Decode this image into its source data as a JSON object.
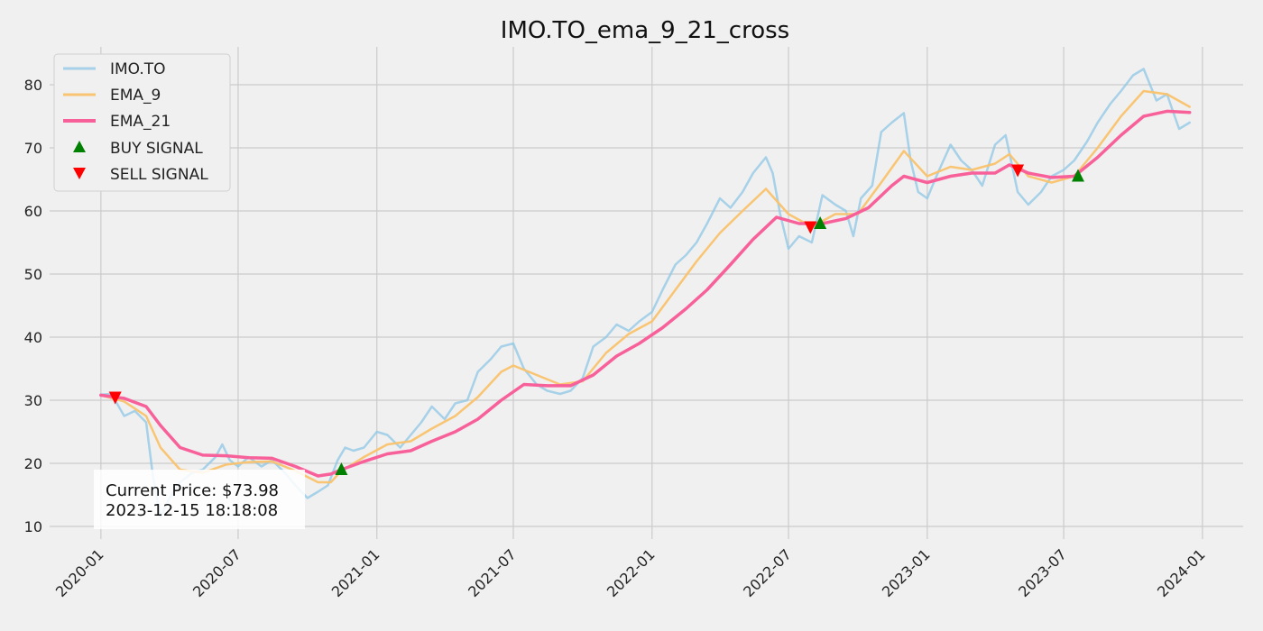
{
  "chart_data": {
    "type": "line",
    "title": "IMO.TO_ema_9_21_cross",
    "xlabel": "",
    "ylabel": "",
    "x_range": [
      "2019-10-25",
      "2024-02-24"
    ],
    "ylim": [
      8.0,
      86.0
    ],
    "grid": true,
    "legend_position": "top-left",
    "x_ticks": [
      {
        "date": "2020-01-01",
        "label": "2020-01"
      },
      {
        "date": "2020-07-01",
        "label": "2020-07"
      },
      {
        "date": "2021-01-01",
        "label": "2021-01"
      },
      {
        "date": "2021-07-01",
        "label": "2021-07"
      },
      {
        "date": "2022-01-01",
        "label": "2022-01"
      },
      {
        "date": "2022-07-01",
        "label": "2022-07"
      },
      {
        "date": "2023-01-01",
        "label": "2023-01"
      },
      {
        "date": "2023-07-01",
        "label": "2023-07"
      },
      {
        "date": "2024-01-01",
        "label": "2024-01"
      }
    ],
    "y_ticks": [
      10,
      20,
      30,
      40,
      50,
      60,
      70,
      80
    ],
    "series": [
      {
        "name": "IMO.TO",
        "color": "#8ec7e6",
        "style": "line",
        "points": [
          [
            "2020-01-01",
            30.9
          ],
          [
            "2020-01-15",
            31.0
          ],
          [
            "2020-02-01",
            27.5
          ],
          [
            "2020-02-15",
            28.3
          ],
          [
            "2020-03-01",
            26.5
          ],
          [
            "2020-03-10",
            18.0
          ],
          [
            "2020-03-20",
            11.5
          ],
          [
            "2020-04-01",
            14.5
          ],
          [
            "2020-04-15",
            17.0
          ],
          [
            "2020-05-01",
            18.5
          ],
          [
            "2020-05-15",
            19.0
          ],
          [
            "2020-06-01",
            21.0
          ],
          [
            "2020-06-10",
            23.0
          ],
          [
            "2020-06-20",
            20.5
          ],
          [
            "2020-07-01",
            19.5
          ],
          [
            "2020-07-15",
            21.0
          ],
          [
            "2020-08-01",
            19.5
          ],
          [
            "2020-08-15",
            20.5
          ],
          [
            "2020-09-01",
            18.5
          ],
          [
            "2020-09-15",
            16.5
          ],
          [
            "2020-10-01",
            14.5
          ],
          [
            "2020-10-15",
            15.5
          ],
          [
            "2020-10-28",
            16.5
          ],
          [
            "2020-11-10",
            20.5
          ],
          [
            "2020-11-20",
            22.5
          ],
          [
            "2020-12-01",
            22.0
          ],
          [
            "2020-12-15",
            22.5
          ],
          [
            "2021-01-01",
            25.0
          ],
          [
            "2021-01-15",
            24.5
          ],
          [
            "2021-02-01",
            22.5
          ],
          [
            "2021-02-15",
            24.5
          ],
          [
            "2021-03-01",
            26.5
          ],
          [
            "2021-03-15",
            29.0
          ],
          [
            "2021-04-01",
            27.0
          ],
          [
            "2021-04-15",
            29.5
          ],
          [
            "2021-05-01",
            30.0
          ],
          [
            "2021-05-15",
            34.5
          ],
          [
            "2021-06-01",
            36.5
          ],
          [
            "2021-06-15",
            38.5
          ],
          [
            "2021-07-01",
            39.0
          ],
          [
            "2021-07-15",
            35.0
          ],
          [
            "2021-08-01",
            32.5
          ],
          [
            "2021-08-15",
            31.5
          ],
          [
            "2021-09-01",
            31.0
          ],
          [
            "2021-09-15",
            31.5
          ],
          [
            "2021-10-01",
            33.5
          ],
          [
            "2021-10-15",
            38.5
          ],
          [
            "2021-11-01",
            40.0
          ],
          [
            "2021-11-15",
            42.0
          ],
          [
            "2021-12-01",
            41.0
          ],
          [
            "2021-12-15",
            42.5
          ],
          [
            "2022-01-01",
            44.0
          ],
          [
            "2022-01-15",
            47.5
          ],
          [
            "2022-02-01",
            51.5
          ],
          [
            "2022-02-15",
            53.0
          ],
          [
            "2022-03-01",
            55.0
          ],
          [
            "2022-03-15",
            58.0
          ],
          [
            "2022-04-01",
            62.0
          ],
          [
            "2022-04-15",
            60.5
          ],
          [
            "2022-05-01",
            63.0
          ],
          [
            "2022-05-15",
            66.0
          ],
          [
            "2022-06-01",
            68.5
          ],
          [
            "2022-06-10",
            66.0
          ],
          [
            "2022-06-20",
            59.5
          ],
          [
            "2022-07-01",
            54.0
          ],
          [
            "2022-07-15",
            56.0
          ],
          [
            "2022-08-01",
            55.0
          ],
          [
            "2022-08-15",
            62.5
          ],
          [
            "2022-09-01",
            61.0
          ],
          [
            "2022-09-15",
            60.0
          ],
          [
            "2022-09-25",
            56.0
          ],
          [
            "2022-10-05",
            62.0
          ],
          [
            "2022-10-20",
            64.0
          ],
          [
            "2022-11-01",
            72.5
          ],
          [
            "2022-11-15",
            74.0
          ],
          [
            "2022-12-01",
            75.5
          ],
          [
            "2022-12-10",
            68.0
          ],
          [
            "2022-12-20",
            63.0
          ],
          [
            "2023-01-01",
            62.0
          ],
          [
            "2023-01-15",
            66.0
          ],
          [
            "2023-02-01",
            70.5
          ],
          [
            "2023-02-15",
            68.0
          ],
          [
            "2023-03-01",
            66.5
          ],
          [
            "2023-03-15",
            64.0
          ],
          [
            "2023-04-01",
            70.5
          ],
          [
            "2023-04-15",
            72.0
          ],
          [
            "2023-05-01",
            63.0
          ],
          [
            "2023-05-15",
            61.0
          ],
          [
            "2023-06-01",
            63.0
          ],
          [
            "2023-06-15",
            65.5
          ],
          [
            "2023-07-01",
            66.5
          ],
          [
            "2023-07-15",
            68.0
          ],
          [
            "2023-08-01",
            71.0
          ],
          [
            "2023-08-15",
            74.0
          ],
          [
            "2023-09-01",
            77.0
          ],
          [
            "2023-09-15",
            79.0
          ],
          [
            "2023-10-01",
            81.5
          ],
          [
            "2023-10-15",
            82.5
          ],
          [
            "2023-11-01",
            77.5
          ],
          [
            "2023-11-15",
            78.5
          ],
          [
            "2023-12-01",
            73.0
          ],
          [
            "2023-12-15",
            74.0
          ]
        ]
      },
      {
        "name": "EMA_9",
        "color": "#f9c26c",
        "style": "line",
        "points": [
          [
            "2020-01-01",
            30.8
          ],
          [
            "2020-02-01",
            29.8
          ],
          [
            "2020-03-01",
            27.5
          ],
          [
            "2020-03-20",
            22.5
          ],
          [
            "2020-04-15",
            19.0
          ],
          [
            "2020-05-15",
            18.5
          ],
          [
            "2020-06-15",
            19.8
          ],
          [
            "2020-07-15",
            20.2
          ],
          [
            "2020-08-15",
            20.3
          ],
          [
            "2020-09-15",
            18.8
          ],
          [
            "2020-10-15",
            17.0
          ],
          [
            "2020-11-01",
            17.0
          ],
          [
            "2020-11-15",
            18.8
          ],
          [
            "2020-12-15",
            21.0
          ],
          [
            "2021-01-15",
            23.0
          ],
          [
            "2021-02-15",
            23.5
          ],
          [
            "2021-03-15",
            25.5
          ],
          [
            "2021-04-15",
            27.5
          ],
          [
            "2021-05-15",
            30.5
          ],
          [
            "2021-06-15",
            34.5
          ],
          [
            "2021-07-01",
            35.5
          ],
          [
            "2021-08-01",
            34.0
          ],
          [
            "2021-09-01",
            32.5
          ],
          [
            "2021-10-01",
            33.0
          ],
          [
            "2021-11-01",
            37.5
          ],
          [
            "2021-12-01",
            40.5
          ],
          [
            "2022-01-01",
            42.5
          ],
          [
            "2022-02-01",
            47.5
          ],
          [
            "2022-03-01",
            52.0
          ],
          [
            "2022-04-01",
            56.5
          ],
          [
            "2022-05-01",
            60.0
          ],
          [
            "2022-06-01",
            63.5
          ],
          [
            "2022-07-01",
            59.5
          ],
          [
            "2022-08-01",
            57.5
          ],
          [
            "2022-09-01",
            59.5
          ],
          [
            "2022-10-01",
            59.5
          ],
          [
            "2022-11-01",
            64.5
          ],
          [
            "2022-12-01",
            69.5
          ],
          [
            "2023-01-01",
            65.5
          ],
          [
            "2023-02-01",
            67.0
          ],
          [
            "2023-03-01",
            66.5
          ],
          [
            "2023-04-01",
            67.5
          ],
          [
            "2023-04-20",
            69.0
          ],
          [
            "2023-05-15",
            65.5
          ],
          [
            "2023-06-15",
            64.5
          ],
          [
            "2023-07-15",
            65.5
          ],
          [
            "2023-08-15",
            70.0
          ],
          [
            "2023-09-15",
            75.0
          ],
          [
            "2023-10-15",
            79.0
          ],
          [
            "2023-11-15",
            78.5
          ],
          [
            "2023-12-15",
            76.5
          ]
        ]
      },
      {
        "name": "EMA_21",
        "color": "#f8609a",
        "style": "thick",
        "points": [
          [
            "2020-01-01",
            30.8
          ],
          [
            "2020-02-01",
            30.3
          ],
          [
            "2020-03-01",
            29.0
          ],
          [
            "2020-03-20",
            26.0
          ],
          [
            "2020-04-15",
            22.5
          ],
          [
            "2020-05-15",
            21.3
          ],
          [
            "2020-06-15",
            21.2
          ],
          [
            "2020-07-15",
            20.9
          ],
          [
            "2020-08-15",
            20.8
          ],
          [
            "2020-09-15",
            19.5
          ],
          [
            "2020-10-15",
            18.0
          ],
          [
            "2020-11-01",
            18.3
          ],
          [
            "2020-11-15",
            19.0
          ],
          [
            "2020-12-15",
            20.3
          ],
          [
            "2021-01-15",
            21.5
          ],
          [
            "2021-02-15",
            22.0
          ],
          [
            "2021-03-15",
            23.5
          ],
          [
            "2021-04-15",
            25.0
          ],
          [
            "2021-05-15",
            27.0
          ],
          [
            "2021-06-15",
            30.0
          ],
          [
            "2021-07-15",
            32.5
          ],
          [
            "2021-08-15",
            32.3
          ],
          [
            "2021-09-15",
            32.3
          ],
          [
            "2021-10-15",
            34.0
          ],
          [
            "2021-11-15",
            37.0
          ],
          [
            "2021-12-15",
            39.0
          ],
          [
            "2022-01-15",
            41.5
          ],
          [
            "2022-02-15",
            44.5
          ],
          [
            "2022-03-15",
            47.5
          ],
          [
            "2022-04-15",
            51.5
          ],
          [
            "2022-05-15",
            55.5
          ],
          [
            "2022-06-15",
            59.0
          ],
          [
            "2022-07-15",
            58.0
          ],
          [
            "2022-08-15",
            58.0
          ],
          [
            "2022-09-15",
            58.8
          ],
          [
            "2022-10-15",
            60.5
          ],
          [
            "2022-11-15",
            64.0
          ],
          [
            "2022-12-01",
            65.5
          ],
          [
            "2023-01-01",
            64.5
          ],
          [
            "2023-02-01",
            65.5
          ],
          [
            "2023-03-01",
            66.0
          ],
          [
            "2023-04-01",
            66.0
          ],
          [
            "2023-04-20",
            67.3
          ],
          [
            "2023-05-15",
            66.0
          ],
          [
            "2023-06-15",
            65.3
          ],
          [
            "2023-07-15",
            65.5
          ],
          [
            "2023-08-15",
            68.5
          ],
          [
            "2023-09-15",
            72.0
          ],
          [
            "2023-10-15",
            75.0
          ],
          [
            "2023-11-15",
            75.8
          ],
          [
            "2023-12-15",
            75.6
          ]
        ]
      }
    ],
    "buy_signals": {
      "name": "BUY SIGNAL",
      "color": "#008000",
      "points": [
        [
          "2020-11-15",
          19.0
        ],
        [
          "2022-08-12",
          58.0
        ],
        [
          "2023-07-20",
          65.5
        ]
      ]
    },
    "sell_signals": {
      "name": "SELL SIGNAL",
      "color": "#ff0000",
      "points": [
        [
          "2020-01-20",
          30.5
        ],
        [
          "2022-07-30",
          57.5
        ],
        [
          "2023-05-01",
          66.5
        ]
      ]
    }
  },
  "annotation": {
    "price_line": "Current Price: $73.98",
    "timestamp_line": "2023-12-15 18:18:08"
  }
}
